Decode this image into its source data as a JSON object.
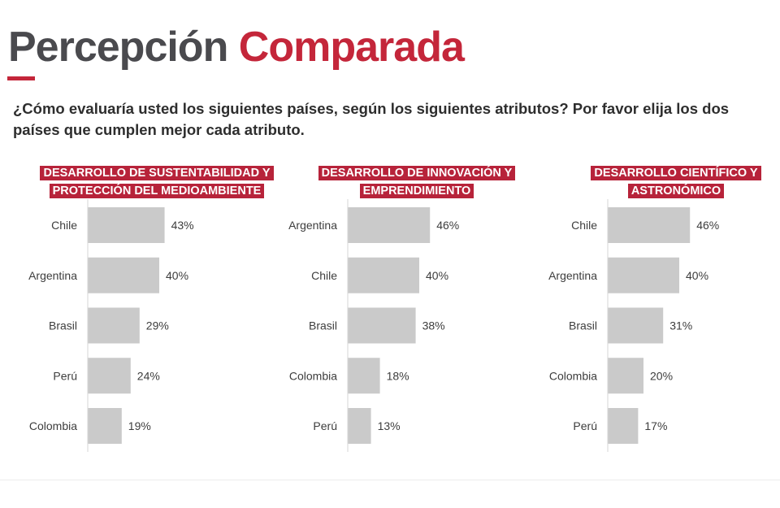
{
  "header": {
    "title_part1": "Percepción",
    "title_part2": "Comparada",
    "question": "¿Cómo evaluaría usted los siguientes países, según los siguientes atributos? Por favor elija los dos países que cumplen mejor cada atributo."
  },
  "colors": {
    "accent": "#c4263a",
    "label_bg": "#b7233a",
    "bar": "#cacaca",
    "title_dark": "#4a4a4e"
  },
  "chart_data": [
    {
      "type": "bar",
      "orientation": "horizontal",
      "title": "DESARROLLO DE SUSTENTABILIDAD Y PROTECCIÓN DEL MEDIOAMBIENTE",
      "categories": [
        "Chile",
        "Argentina",
        "Brasil",
        "Perú",
        "Colombia"
      ],
      "values": [
        43,
        40,
        29,
        24,
        19
      ],
      "value_labels": [
        "43%",
        "40%",
        "29%",
        "24%",
        "19%"
      ],
      "unit": "%",
      "xlim": [
        0,
        100
      ]
    },
    {
      "type": "bar",
      "orientation": "horizontal",
      "title": "DESARROLLO DE INNOVACIÓN Y EMPRENDIMIENTO",
      "categories": [
        "Argentina",
        "Chile",
        "Brasil",
        "Colombia",
        "Perú"
      ],
      "values": [
        46,
        40,
        38,
        18,
        13
      ],
      "value_labels": [
        "46%",
        "40%",
        "38%",
        "18%",
        "13%"
      ],
      "unit": "%",
      "xlim": [
        0,
        100
      ]
    },
    {
      "type": "bar",
      "orientation": "horizontal",
      "title": "DESARROLLO CIENTÍFICO Y ASTRONÓMICO",
      "categories": [
        "Chile",
        "Argentina",
        "Brasil",
        "Colombia",
        "Perú"
      ],
      "values": [
        46,
        40,
        31,
        20,
        17
      ],
      "value_labels": [
        "46%",
        "40%",
        "31%",
        "20%",
        "17%"
      ],
      "unit": "%",
      "xlim": [
        0,
        100
      ]
    }
  ]
}
